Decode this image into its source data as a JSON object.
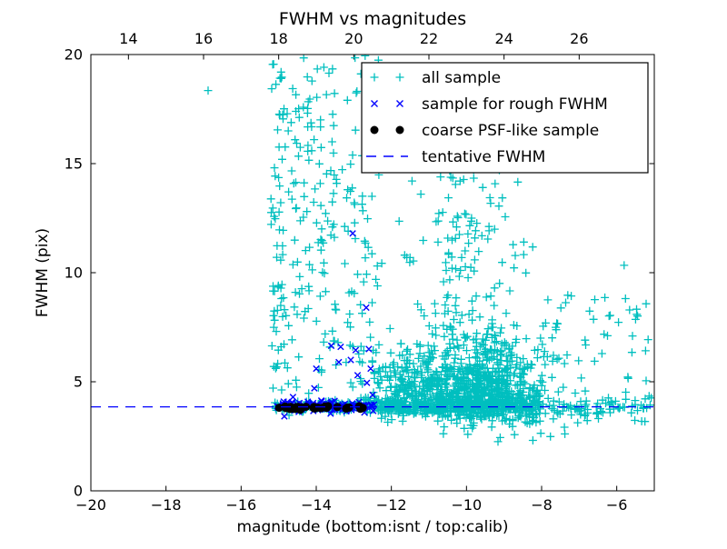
{
  "figure": {
    "background": "#ffffff"
  },
  "chart_data": {
    "type": "scatter",
    "title": "FWHM vs magnitudes",
    "xlabel": "magnitude (bottom:isnt / top:calib)",
    "ylabel": "FWHM (pix)",
    "xlim": [
      -20,
      -5
    ],
    "xlim_top": [
      13,
      28
    ],
    "ylim": [
      0,
      20
    ],
    "grid": false,
    "seed": 7,
    "x_ticks_bottom": [
      {
        "v": -20,
        "label": "−20"
      },
      {
        "v": -18,
        "label": "−18"
      },
      {
        "v": -16,
        "label": "−16"
      },
      {
        "v": -14,
        "label": "−14"
      },
      {
        "v": -12,
        "label": "−12"
      },
      {
        "v": -10,
        "label": "−10"
      },
      {
        "v": -8,
        "label": "−8"
      },
      {
        "v": -6,
        "label": "−6"
      }
    ],
    "x_ticks_top": [
      {
        "v": 14,
        "label": "14"
      },
      {
        "v": 16,
        "label": "16"
      },
      {
        "v": 18,
        "label": "18"
      },
      {
        "v": 20,
        "label": "20"
      },
      {
        "v": 22,
        "label": "22"
      },
      {
        "v": 24,
        "label": "24"
      },
      {
        "v": 26,
        "label": "26"
      }
    ],
    "y_ticks": [
      {
        "v": 0,
        "label": "0"
      },
      {
        "v": 5,
        "label": "5"
      },
      {
        "v": 10,
        "label": "10"
      },
      {
        "v": 15,
        "label": "15"
      },
      {
        "v": 20,
        "label": "20"
      }
    ],
    "tentative_fwhm": 3.85,
    "line_color": "#0000ff",
    "legend": {
      "position": "top-right",
      "entries": [
        {
          "label": "all sample",
          "marker": "plus",
          "color": "#00bfbf"
        },
        {
          "label": "sample for rough FWHM",
          "marker": "x",
          "color": "#0000ff"
        },
        {
          "label": "coarse PSF-like sample",
          "marker": "dot",
          "color": "#000000"
        },
        {
          "label": "tentative FWHM",
          "marker": "dashed-line",
          "color": "#0000ff"
        }
      ]
    },
    "series": [
      {
        "name": "all sample",
        "marker": "plus",
        "color": "#00bfbf",
        "clusters": [
          {
            "n": 180,
            "x": {
              "d": "u",
              "a": -15.1,
              "b": -12.4
            },
            "y": {
              "d": "g",
              "m": 3.85,
              "s": 0.12
            }
          },
          {
            "n": 430,
            "x": {
              "d": "u",
              "a": -12.4,
              "b": -8.2
            },
            "y": {
              "d": "g",
              "m": 3.85,
              "s": 0.2
            }
          },
          {
            "n": 130,
            "x": {
              "d": "u",
              "a": -10.8,
              "b": -8.0
            },
            "y": {
              "d": "g",
              "m": 3.6,
              "s": 0.4
            }
          },
          {
            "n": 90,
            "x": {
              "d": "u",
              "a": -8.2,
              "b": -5.05
            },
            "y": {
              "d": "g",
              "m": 3.9,
              "s": 0.3
            }
          },
          {
            "n": 620,
            "x": {
              "d": "g",
              "m": -9.6,
              "s": 0.85
            },
            "y": {
              "d": "hg",
              "b": 3.95,
              "s": 1.7,
              "max": 16.5
            }
          },
          {
            "n": 200,
            "x": {
              "d": "g",
              "m": -11.4,
              "s": 0.65
            },
            "y": {
              "d": "hg",
              "b": 3.95,
              "s": 1.3,
              "max": 18
            }
          },
          {
            "n": 80,
            "x": {
              "d": "g",
              "m": -10.2,
              "s": 0.75
            },
            "y": {
              "d": "u",
              "a": 8.0,
              "b": 15.5
            }
          },
          {
            "n": 26,
            "x": {
              "d": "g",
              "m": -15.12,
              "s": 0.055
            },
            "y": {
              "d": "u",
              "a": 4.3,
              "b": 19.6
            }
          },
          {
            "n": 22,
            "x": {
              "d": "g",
              "m": -14.93,
              "s": 0.055
            },
            "y": {
              "d": "u",
              "a": 4.3,
              "b": 19.2
            }
          },
          {
            "n": 18,
            "x": {
              "d": "g",
              "m": -14.55,
              "s": 0.055
            },
            "y": {
              "d": "u",
              "a": 4.3,
              "b": 18.5
            }
          },
          {
            "n": 16,
            "x": {
              "d": "g",
              "m": -14.22,
              "s": 0.055
            },
            "y": {
              "d": "u",
              "a": 4.3,
              "b": 19.5
            }
          },
          {
            "n": 16,
            "x": {
              "d": "g",
              "m": -13.88,
              "s": 0.055
            },
            "y": {
              "d": "u",
              "a": 4.3,
              "b": 18.0
            }
          },
          {
            "n": 14,
            "x": {
              "d": "g",
              "m": -13.52,
              "s": 0.055
            },
            "y": {
              "d": "u",
              "a": 4.3,
              "b": 17.0
            }
          },
          {
            "n": 12,
            "x": {
              "d": "g",
              "m": -13.12,
              "s": 0.06
            },
            "y": {
              "d": "u",
              "a": 4.3,
              "b": 16.0
            }
          },
          {
            "n": 10,
            "x": {
              "d": "g",
              "m": -12.78,
              "s": 0.06
            },
            "y": {
              "d": "u",
              "a": 4.3,
              "b": 14.0
            }
          },
          {
            "n": 120,
            "x": {
              "d": "u",
              "a": -15.2,
              "b": -12.3
            },
            "y": {
              "d": "u",
              "a": 4.5,
              "b": 19.2
            }
          },
          {
            "n": 55,
            "x": {
              "d": "u",
              "a": -12.3,
              "b": -8.0
            },
            "y": {
              "d": "u",
              "a": 9.5,
              "b": 19.8
            }
          },
          {
            "n": 45,
            "x": {
              "d": "u",
              "a": -8.0,
              "b": -5.1
            },
            "y": {
              "d": "u",
              "a": 4.3,
              "b": 9.0
            }
          },
          {
            "n": 12,
            "x": {
              "d": "u",
              "a": -12.2,
              "b": -5.2
            },
            "y": {
              "d": "u",
              "a": 2.3,
              "b": 3.4
            }
          },
          {
            "n": 8,
            "x": {
              "d": "u",
              "a": -14.4,
              "b": -12.1
            },
            "y": {
              "d": "u",
              "a": 19.3,
              "b": 20.0
            }
          },
          {
            "n": 14,
            "x": {
              "d": "u",
              "a": -9.0,
              "b": -5.2
            },
            "y": {
              "d": "u",
              "a": 10.0,
              "b": 17.0
            }
          }
        ],
        "points": [
          [
            -16.88,
            18.35
          ]
        ]
      },
      {
        "name": "sample for rough FWHM",
        "marker": "x",
        "color": "#0000ff",
        "clusters": [
          {
            "n": 115,
            "x": {
              "d": "u",
              "a": -15.05,
              "b": -12.45
            },
            "y": {
              "d": "g",
              "m": 3.87,
              "s": 0.13
            }
          }
        ],
        "points": [
          [
            -13.03,
            11.8
          ],
          [
            -12.67,
            8.4
          ],
          [
            -13.6,
            6.65
          ],
          [
            -13.35,
            6.6
          ],
          [
            -13.08,
            6.0
          ],
          [
            -12.95,
            6.45
          ],
          [
            -12.6,
            6.5
          ],
          [
            -14.0,
            5.6
          ],
          [
            -12.9,
            5.3
          ],
          [
            -14.05,
            4.7
          ],
          [
            -12.65,
            4.95
          ],
          [
            -12.5,
            4.4
          ],
          [
            -14.62,
            4.3
          ],
          [
            -13.4,
            5.9
          ],
          [
            -12.55,
            5.6
          ]
        ]
      },
      {
        "name": "coarse PSF-like sample",
        "marker": "dot",
        "color": "#000000",
        "clusters": [
          {
            "n": 30,
            "x": {
              "d": "u",
              "a": -15.0,
              "b": -12.68
            },
            "y": {
              "d": "g",
              "m": 3.8,
              "s": 0.045
            }
          }
        ],
        "points": []
      }
    ]
  }
}
